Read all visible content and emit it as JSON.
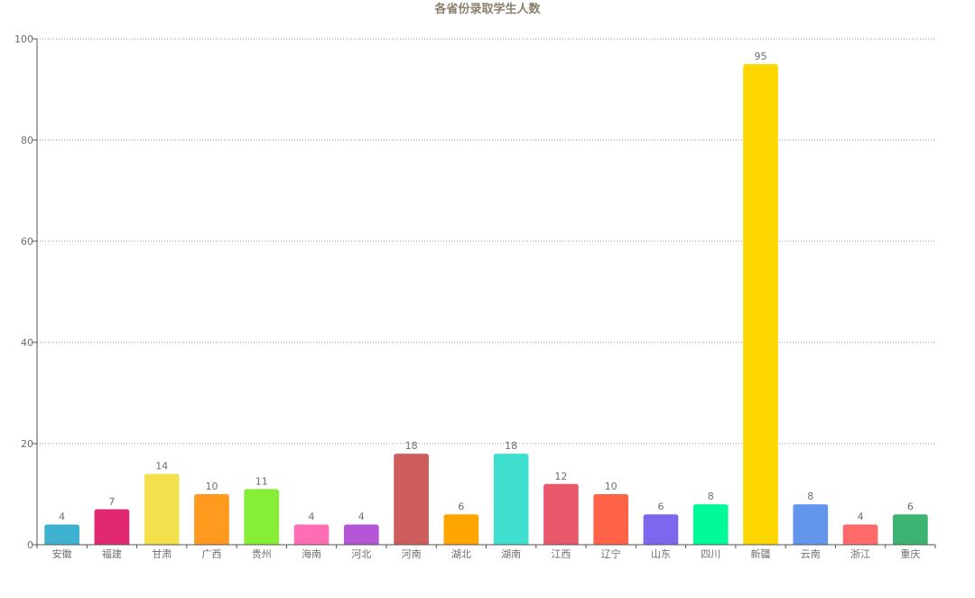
{
  "chart_data": {
    "type": "bar",
    "title": "各省份录取学生人数",
    "xlabel": "",
    "ylabel": "",
    "ylim": [
      0,
      100
    ],
    "yticks": [
      0,
      20,
      40,
      60,
      80,
      100
    ],
    "grid": true,
    "categories": [
      "安徽",
      "福建",
      "甘肃",
      "广西",
      "贵州",
      "海南",
      "河北",
      "河南",
      "湖北",
      "湖南",
      "江西",
      "辽宁",
      "山东",
      "四川",
      "新疆",
      "云南",
      "浙江",
      "重庆"
    ],
    "values": [
      4,
      7,
      14,
      10,
      11,
      4,
      4,
      18,
      6,
      18,
      12,
      10,
      6,
      8,
      95,
      8,
      4,
      6
    ],
    "colors": [
      "#3fb1d0",
      "#e0286e",
      "#f4e04d",
      "#ff9a1e",
      "#86ee36",
      "#ff6eb4",
      "#b455d6",
      "#cd5c5c",
      "#ffa500",
      "#40e0d0",
      "#e9576a",
      "#ff6347",
      "#7b68ee",
      "#00fa9a",
      "#ffd700",
      "#6495ed",
      "#ff6b6b",
      "#3cb371"
    ]
  }
}
